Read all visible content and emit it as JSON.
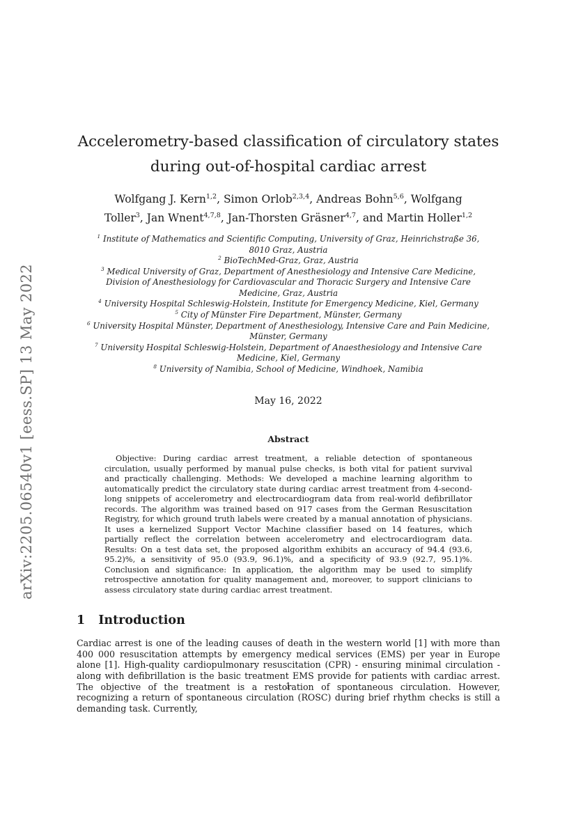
{
  "sidebar": {
    "arxiv_label": "arXiv:2205.06540v1  [eess.SP]  13 May 2022"
  },
  "header": {
    "title_lines": [
      "Accelerometry-based classification of circulatory states",
      "during out-of-hospital cardiac arrest"
    ],
    "authors": [
      {
        "pre": "",
        "name": "Wolfgang J. Kern",
        "sup": "1,2"
      },
      {
        "pre": ", ",
        "name": "Simon Orlob",
        "sup": "2,3,4"
      },
      {
        "pre": ", ",
        "name": "Andreas Bohn",
        "sup": "5,6"
      },
      {
        "pre": ", ",
        "name": "Wolfgang Toller",
        "sup": "3"
      },
      {
        "pre": ", ",
        "name": "Jan Wnent",
        "sup": "4,7,8"
      },
      {
        "pre": ", ",
        "name": "Jan-Thorsten Gräsner",
        "sup": "4,7"
      },
      {
        "pre": ", and ",
        "name": "Martin Holler",
        "sup": "1,2"
      }
    ],
    "affiliations": [
      {
        "sup": "1",
        "text": "Institute of Mathematics and Scientific Computing, University of Graz, Heinrichstraße 36, 8010 Graz, Austria"
      },
      {
        "sup": "2",
        "text": "BioTechMed-Graz, Graz, Austria"
      },
      {
        "sup": "3",
        "text": "Medical University of Graz, Department of Anesthesiology and Intensive Care Medicine, Division of Anesthesiology for Cardiovascular and Thoracic Surgery and Intensive Care Medicine, Graz, Austria"
      },
      {
        "sup": "4",
        "text": "University Hospital Schleswig-Holstein, Institute for Emergency Medicine, Kiel, Germany"
      },
      {
        "sup": "5",
        "text": "City of Münster Fire Department, Münster, Germany"
      },
      {
        "sup": "6",
        "text": "University Hospital Münster, Department of Anesthesiology, Intensive Care and Pain Medicine, Münster, Germany"
      },
      {
        "sup": "7",
        "text": "University Hospital Schleswig-Holstein, Department of Anaesthesiology and Intensive Care Medicine, Kiel, Germany"
      },
      {
        "sup": "8",
        "text": "University of Namibia, School of Medicine, Windhoek, Namibia"
      }
    ],
    "date": "May 16, 2022"
  },
  "abstract": {
    "label": "Abstract",
    "text": "Objective: During cardiac arrest treatment, a reliable detection of spontaneous circulation, usually performed by manual pulse checks, is both vital for patient survival and practically challenging. Methods: We developed a machine learning algorithm to automatically predict the circulatory state during cardiac arrest treatment from 4-second-long snippets of accelerometry and electrocardiogram data from real-world defibrillator records. The algorithm was trained based on 917 cases from the German Resuscitation Registry, for which ground truth labels were created by a manual annotation of physicians. It uses a kernelized Support Vector Machine classifier based on 14 features, which partially reflect the correlation between accelerometry and electrocardiogram data. Results: On a test data set, the proposed algorithm exhibits an accuracy of 94.4 (93.6, 95.2)%, a sensitivity of 95.0 (93.9, 96.1)%, and a specificity of 93.9 (92.7, 95.1)%. Conclusion and significance: In application, the algorithm may be used to simplify retrospective annotation for quality management and, moreover, to support clinicians to assess circulatory state during cardiac arrest treatment."
  },
  "introduction": {
    "number": "1",
    "heading": "Introduction",
    "paragraph": "Cardiac arrest is one of the leading causes of death in the western world [1] with more than 400 000 resuscitation attempts by emergency medical services (EMS) per year in Europe alone [1]. High-quality cardiopulmonary resuscitation (CPR) - ensuring minimal circulation - along with defibrillation is the basic treatment EMS provide for patients with cardiac arrest. The objective of the treatment is a restoration of spontaneous circulation. However, recognizing a return of spontaneous circulation (ROSC) during brief rhythm checks is still a demanding task. Currently,"
  },
  "footer": {
    "page_number": "1"
  }
}
